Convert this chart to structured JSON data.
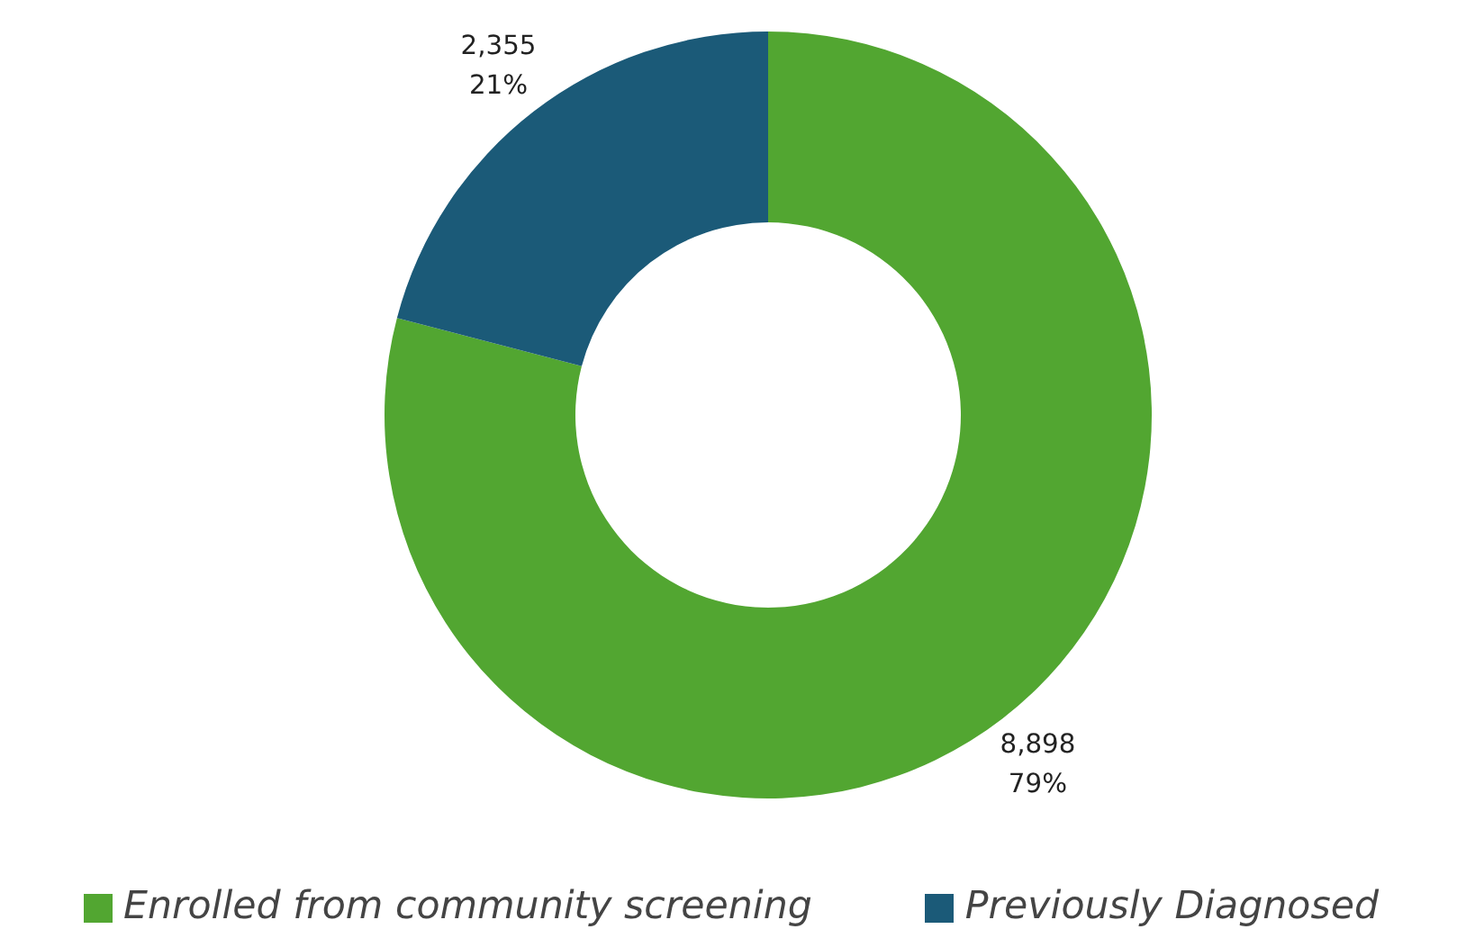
{
  "chart_data": {
    "type": "donut",
    "categories": [
      "Enrolled from community screening",
      "Previously Diagnosed"
    ],
    "values": [
      8898,
      2355
    ],
    "colors": [
      "#52a631",
      "#1b5a78"
    ],
    "value_labels": [
      "8,898\n79%",
      "2,355\n21%"
    ],
    "legend": "bottom"
  }
}
